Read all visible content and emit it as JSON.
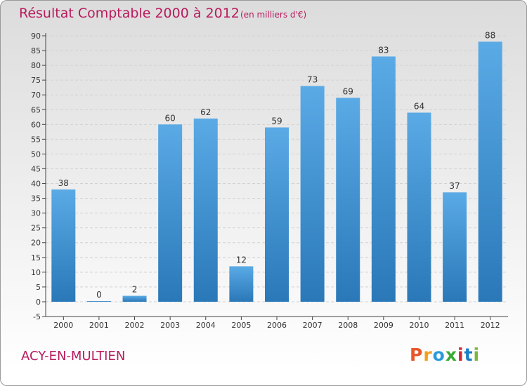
{
  "header": {
    "title": "Résultat Comptable 2000 à 2012",
    "subtitle": "(en milliers d'€)"
  },
  "footer": {
    "commune": "ACY-EN-MULTIEN",
    "logo_text": "Proxiti"
  },
  "colors": {
    "title": "#b81a5d",
    "bar_top": "#5aaae6",
    "bar_bottom": "#2a78b8",
    "logo": [
      "#e8552a",
      "#f0a020",
      "#2a9ad8",
      "#3aaa35",
      "#d8262e",
      "#1a7fc6",
      "#7ab83a"
    ]
  },
  "chart_data": {
    "type": "bar",
    "title": "Résultat Comptable 2000 à 2012",
    "categories": [
      "2000",
      "2001",
      "2002",
      "2003",
      "2004",
      "2005",
      "2006",
      "2007",
      "2008",
      "2009",
      "2010",
      "2011",
      "2012"
    ],
    "values": [
      38,
      0,
      2,
      60,
      62,
      12,
      59,
      73,
      69,
      83,
      64,
      37,
      88
    ],
    "ylim": [
      -5,
      90
    ],
    "yticks": [
      -5,
      0,
      5,
      10,
      15,
      20,
      25,
      30,
      35,
      40,
      45,
      50,
      55,
      60,
      65,
      70,
      75,
      80,
      85,
      90
    ],
    "grid": true,
    "xlabel": "",
    "ylabel": ""
  }
}
